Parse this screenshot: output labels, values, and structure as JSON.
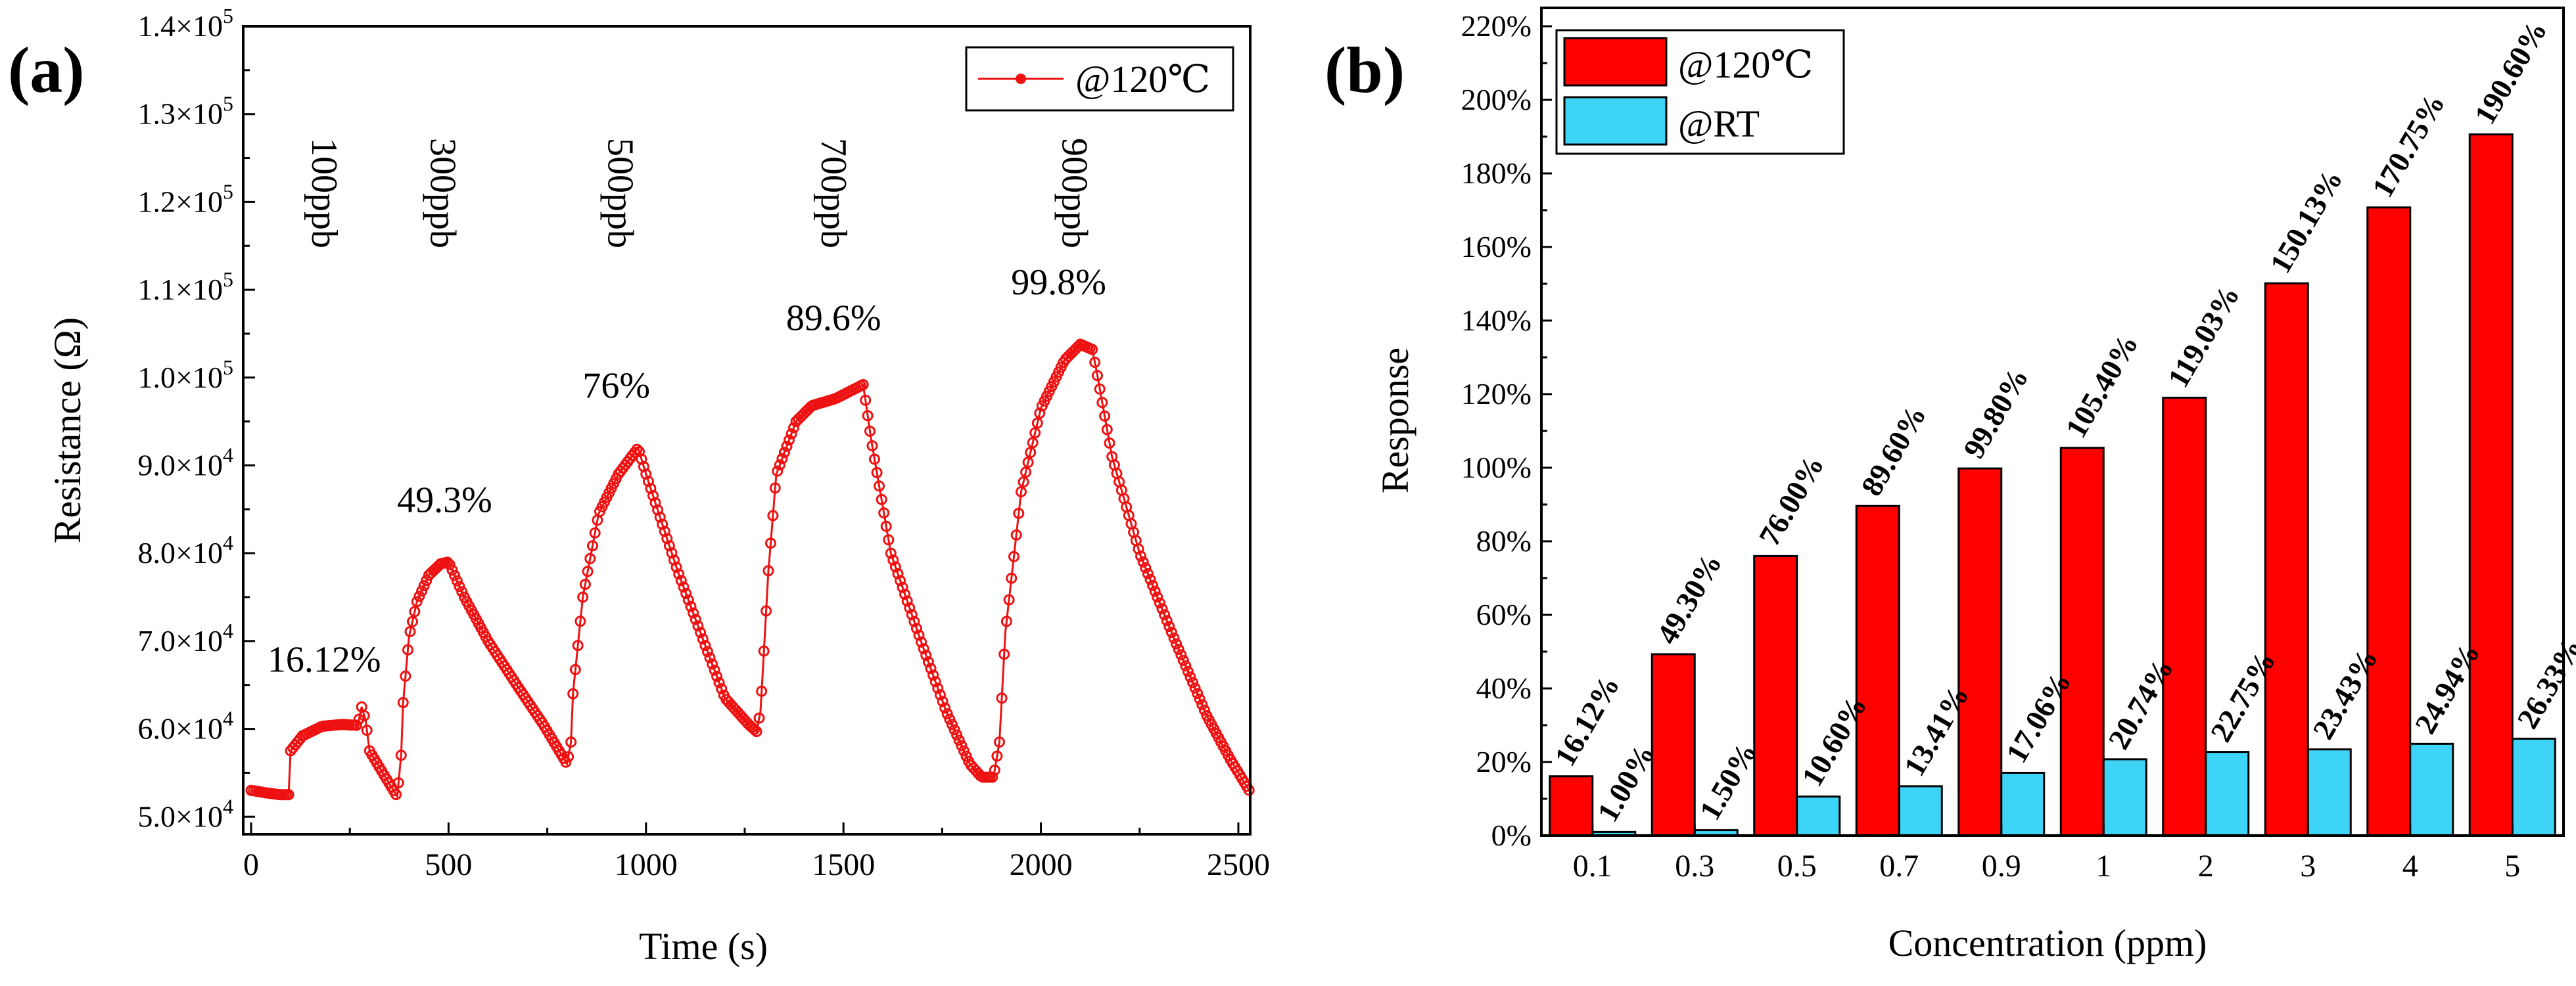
{
  "chart_data": [
    {
      "type": "line",
      "panel_label": "(a)",
      "xlabel": "Time (s)",
      "ylabel": "Resistance (Ω)",
      "xlim": [
        -20,
        2530
      ],
      "ylim": [
        48000,
        140000
      ],
      "xticks": [
        {
          "value": 0,
          "label": "0"
        },
        {
          "value": 500,
          "label": "500"
        },
        {
          "value": 1000,
          "label": "1000"
        },
        {
          "value": 1500,
          "label": "1500"
        },
        {
          "value": 2000,
          "label": "2000"
        },
        {
          "value": 2500,
          "label": "2500"
        }
      ],
      "yticks": [
        {
          "value": 50000,
          "mant": "5.0",
          "exp": "4"
        },
        {
          "value": 60000,
          "mant": "6.0",
          "exp": "4"
        },
        {
          "value": 70000,
          "mant": "7.0",
          "exp": "4"
        },
        {
          "value": 80000,
          "mant": "8.0",
          "exp": "4"
        },
        {
          "value": 90000,
          "mant": "9.0",
          "exp": "4"
        },
        {
          "value": 100000,
          "mant": "1.0",
          "exp": "5"
        },
        {
          "value": 110000,
          "mant": "1.1",
          "exp": "5"
        },
        {
          "value": 120000,
          "mant": "1.2",
          "exp": "5"
        },
        {
          "value": 130000,
          "mant": "1.3",
          "exp": "5"
        },
        {
          "value": 140000,
          "mant": "1.4",
          "exp": "5"
        }
      ],
      "tick_times": "×10",
      "legend": {
        "label": "@120℃",
        "position": "top-right"
      },
      "series_color": "#ee1111",
      "anchors": [
        [
          0,
          53000
        ],
        [
          40,
          52700
        ],
        [
          75,
          52500
        ],
        [
          95,
          52500
        ],
        [
          100,
          57500
        ],
        [
          130,
          59200
        ],
        [
          180,
          60300
        ],
        [
          230,
          60500
        ],
        [
          270,
          60400
        ],
        [
          280,
          62500
        ],
        [
          290,
          61000
        ],
        [
          300,
          57500
        ],
        [
          340,
          54500
        ],
        [
          370,
          52300
        ],
        [
          380,
          57000
        ],
        [
          385,
          63000
        ],
        [
          400,
          70500
        ],
        [
          420,
          74500
        ],
        [
          450,
          77500
        ],
        [
          480,
          78800
        ],
        [
          500,
          79000
        ],
        [
          540,
          75000
        ],
        [
          600,
          70000
        ],
        [
          680,
          64500
        ],
        [
          740,
          60500
        ],
        [
          780,
          57500
        ],
        [
          800,
          56000
        ],
        [
          810,
          58500
        ],
        [
          815,
          64000
        ],
        [
          840,
          75000
        ],
        [
          880,
          84500
        ],
        [
          930,
          89000
        ],
        [
          980,
          92000
        ],
        [
          1000,
          89000
        ],
        [
          1080,
          78000
        ],
        [
          1150,
          69500
        ],
        [
          1200,
          63500
        ],
        [
          1260,
          60500
        ],
        [
          1280,
          59700
        ],
        [
          1290,
          62000
        ],
        [
          1310,
          78000
        ],
        [
          1330,
          89000
        ],
        [
          1380,
          95000
        ],
        [
          1420,
          96800
        ],
        [
          1480,
          97600
        ],
        [
          1550,
          99200
        ],
        [
          1570,
          93000
        ],
        [
          1620,
          80000
        ],
        [
          1700,
          69500
        ],
        [
          1760,
          62000
        ],
        [
          1820,
          56000
        ],
        [
          1850,
          54500
        ],
        [
          1880,
          54500
        ],
        [
          1895,
          58500
        ],
        [
          1910,
          71000
        ],
        [
          1950,
          87000
        ],
        [
          2000,
          96500
        ],
        [
          2060,
          102000
        ],
        [
          2100,
          103800
        ],
        [
          2130,
          103200
        ],
        [
          2140,
          101000
        ],
        [
          2180,
          91000
        ],
        [
          2250,
          80000
        ],
        [
          2340,
          70000
        ],
        [
          2420,
          61500
        ],
        [
          2480,
          56500
        ],
        [
          2530,
          52800
        ]
      ],
      "concentration_labels": [
        {
          "text": "100ppb",
          "x": 155,
          "y": 121000
        },
        {
          "text": "300ppb",
          "x": 455,
          "y": 121000
        },
        {
          "text": "500ppb",
          "x": 905,
          "y": 121000
        },
        {
          "text": "700ppb",
          "x": 1445,
          "y": 121000
        },
        {
          "text": "900ppb",
          "x": 2055,
          "y": 121000
        }
      ],
      "response_annotations": [
        {
          "text": "16.12%",
          "x": 185,
          "y": 66500
        },
        {
          "text": "49.3%",
          "x": 490,
          "y": 84700
        },
        {
          "text": "76%",
          "x": 925,
          "y": 97700
        },
        {
          "text": "89.6%",
          "x": 1475,
          "y": 105400
        },
        {
          "text": "99.8%",
          "x": 2045,
          "y": 109500
        }
      ]
    },
    {
      "type": "bar",
      "panel_label": "(b)",
      "xlabel": "Concentration (ppm)",
      "ylabel": "Response",
      "ylim": [
        0,
        225
      ],
      "yticks": [
        {
          "value": 0,
          "label": "0%"
        },
        {
          "value": 20,
          "label": "20%"
        },
        {
          "value": 40,
          "label": "40%"
        },
        {
          "value": 60,
          "label": "60%"
        },
        {
          "value": 80,
          "label": "80%"
        },
        {
          "value": 100,
          "label": "100%"
        },
        {
          "value": 120,
          "label": "120%"
        },
        {
          "value": 140,
          "label": "140%"
        },
        {
          "value": 160,
          "label": "160%"
        },
        {
          "value": 180,
          "label": "180%"
        },
        {
          "value": 200,
          "label": "200%"
        },
        {
          "value": 220,
          "label": "220%"
        }
      ],
      "categories": [
        "0.1",
        "0.3",
        "0.5",
        "0.7",
        "0.9",
        "1",
        "2",
        "3",
        "4",
        "5"
      ],
      "series": [
        {
          "name": "@120℃",
          "color": "#ff0000",
          "values": [
            16.12,
            49.3,
            76.0,
            89.6,
            99.8,
            105.4,
            119.03,
            150.13,
            170.75,
            190.6
          ],
          "labels": [
            "16.12%",
            "49.30%",
            "76.00%",
            "89.60%",
            "99.80%",
            "105.40%",
            "119.03%",
            "150.13%",
            "170.75%",
            "190.60%"
          ]
        },
        {
          "name": "@RT",
          "color": "#3ed4f8",
          "values": [
            1.0,
            1.5,
            10.6,
            13.41,
            17.06,
            20.74,
            22.75,
            23.43,
            24.94,
            26.33
          ],
          "labels": [
            "1.00%",
            "1.50%",
            "10.60%",
            "13.41%",
            "17.06%",
            "20.74%",
            "22.75%",
            "23.43%",
            "24.94%",
            "26.33%"
          ]
        }
      ],
      "legend": {
        "position": "top-left"
      }
    }
  ]
}
